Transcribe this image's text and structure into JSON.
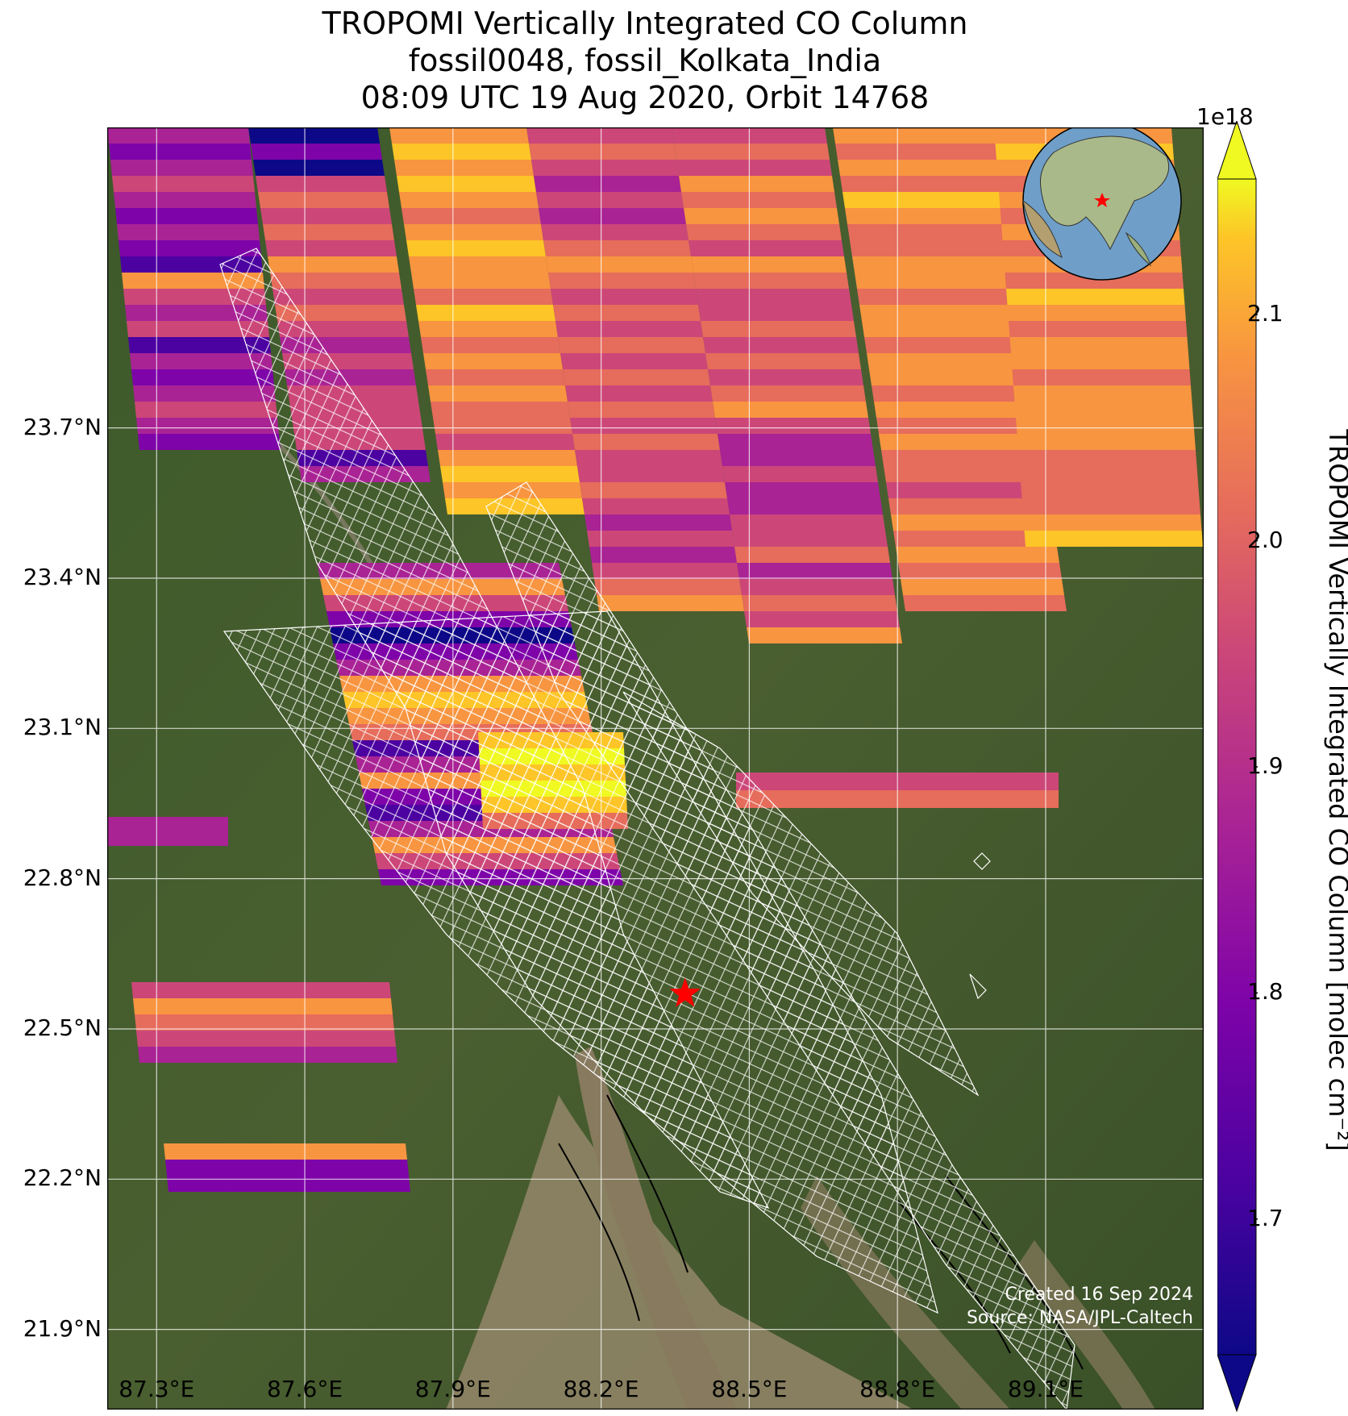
{
  "title": {
    "line1": "TROPOMI Vertically Integrated CO Column",
    "line2": "fossil0048, fossil_Kolkata_India",
    "line3": "08:09 UTC 19 Aug 2020, Orbit 14768"
  },
  "map": {
    "lat_range": [
      21.74,
      24.3
    ],
    "lon_range": [
      87.2,
      89.42
    ],
    "lat_ticks": [
      "23.7°N",
      "23.4°N",
      "23.1°N",
      "22.8°N",
      "22.5°N",
      "22.2°N",
      "21.9°N"
    ],
    "lon_ticks": [
      "87.3°E",
      "87.6°E",
      "87.9°E",
      "88.2°E",
      "88.5°E",
      "88.8°E",
      "89.1°E"
    ],
    "target_marker": {
      "name": "Kolkata",
      "lat": 22.57,
      "lon": 88.37,
      "color": "#ff0000"
    },
    "inset_globe": {
      "description_marker_color": "#ff0000"
    },
    "basemap": "satellite imagery",
    "coastline_color": "#000000",
    "overlay_color": "#ffffff"
  },
  "colorbar": {
    "label": "TROPOMI Vertically Integrated CO Column [molec cm⁻²]",
    "exponent": "1e18",
    "ticks": [
      "2.1",
      "2.0",
      "1.9",
      "1.8",
      "1.7"
    ],
    "tick_values": [
      2.1,
      2.0,
      1.9,
      1.8,
      1.7
    ],
    "vmin": 1.64,
    "vmax": 2.16,
    "colormap": "plasma",
    "extend": "both"
  },
  "credit": {
    "line1": "Created 16 Sep 2024",
    "line2": "Source: NASA/JPL-Caltech"
  }
}
